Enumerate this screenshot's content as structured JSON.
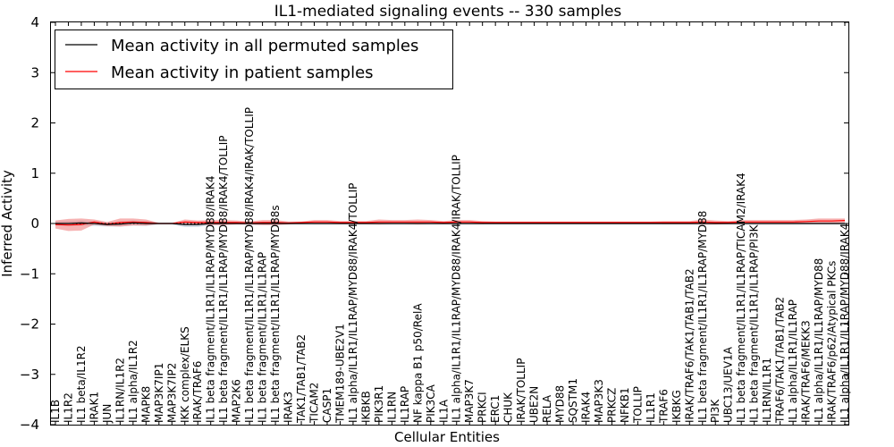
{
  "chart_data": {
    "type": "line",
    "title": "IL1-mediated signaling events -- 330 samples",
    "xlabel": "Cellular Entities",
    "ylabel": "Inferred Activity",
    "ylim": [
      -4,
      4
    ],
    "yticks": [
      -4,
      -3,
      -2,
      -1,
      0,
      1,
      2,
      3,
      4
    ],
    "ytick_labels": [
      "−4",
      "−3",
      "−2",
      "−1",
      "0",
      "1",
      "2",
      "3",
      "4"
    ],
    "legend_position": "top-left",
    "colors": {
      "permuted": "#000000",
      "patient": "#ff0000",
      "patient_band": "#f08080",
      "permuted_band": "#a8b8c8"
    },
    "categories": [
      "IL1B",
      "IL1R2",
      "IL1 beta/IL1R2",
      "IRAK1",
      "JUN",
      "IL1RN/IL1R2",
      "IL1 alpha/IL1R2",
      "MAPK8",
      "MAP3K7IP1",
      "MAP3K7IP2",
      "IKK complex/ELKS",
      "IRAK/TRAF6",
      "IL1 beta fragment/IL1R1/IL1RAP/MYD88/IRAK4",
      "IL1 beta fragment/IL1R1/IL1RAP/MYD88/IRAK4/TOLLIP",
      "MAP2K6",
      "IL1 beta fragment/IL1R1/IL1RAP/MYD88/IRAK4/IRAK/TOLLIP",
      "IL1 beta fragment/IL1R1/IL1RAP",
      "IL1 beta fragment/IL1R1/IL1RAP/MYD88s",
      "IRAK3",
      "TAK1/TAB1/TAB2",
      "TICAM2",
      "CASP1",
      "TMEM189-UBE2V1",
      "IL1 alpha/IL1R1/IL1RAP/MYD88/IRAK4/TOLLIP",
      "IKBKB",
      "PIK3R1",
      "IL1RN",
      "IL1RAP",
      "NF kappa B1 p50/RelA",
      "PIK3CA",
      "IL1A",
      "IL1 alpha/IL1R1/IL1RAP/MYD88/IRAK4/IRAK/TOLLIP",
      "MAP3K7",
      "PRKCI",
      "ERC1",
      "CHUK",
      "IRAK/TOLLIP",
      "UBE2N",
      "RELA",
      "MYD88",
      "SQSTM1",
      "IRAK4",
      "MAP3K3",
      "PRKCZ",
      "NFKB1",
      "TOLLIP",
      "IL1R1",
      "TRAF6",
      "IKBKG",
      "IRAK/TRAF6/TAK1/TAB1/TAB2",
      "IL1 beta fragment/IL1R1/IL1RAP/MYD88",
      "PI3K",
      "UBC13/UEV1A",
      "IL1 beta fragment/IL1R1/IL1RAP/TICAM2/IRAK4",
      "IL1 beta fragment/IL1R1/IL1RAP/PI3K",
      "IL1RN/IL1R1",
      "TRAF6/TAK1/TAB1/TAB2",
      "IL1 alpha/IL1R1/IL1RAP",
      "IRAK/TRAF6/MEKK3",
      "IL1 alpha/IL1R1/IL1RAP/MYD88",
      "IRAK/TRAF6/p62/Atypical PKCs",
      "IL1 alpha/IL1R1/IL1RAP/MYD88/IRAK4"
    ],
    "series": [
      {
        "name": "Mean activity in all permuted samples",
        "values": [
          0.0,
          0.0,
          0.01,
          0.0,
          -0.02,
          -0.01,
          0.01,
          0.0,
          0.0,
          0.0,
          -0.02,
          -0.02,
          0.0,
          0.0,
          0.0,
          0.0,
          0.0,
          0.0,
          0.0,
          0.0,
          0.0,
          0.0,
          0.0,
          0.0,
          0.0,
          0.0,
          0.0,
          0.0,
          0.0,
          0.0,
          0.0,
          0.0,
          0.0,
          0.0,
          0.0,
          0.0,
          0.0,
          0.0,
          0.0,
          0.0,
          0.0,
          0.0,
          0.0,
          0.0,
          0.0,
          0.0,
          0.0,
          0.0,
          0.0,
          0.0,
          0.0,
          0.0,
          0.0,
          0.0,
          0.0,
          0.0,
          0.0,
          0.0,
          0.0,
          0.0,
          0.0,
          0.0
        ],
        "std": [
          0.04,
          0.05,
          0.05,
          0.05,
          0.04,
          0.05,
          0.05,
          0.05,
          0.02,
          0.02,
          0.05,
          0.05,
          0.03,
          0.03,
          0.02,
          0.03,
          0.03,
          0.03,
          0.02,
          0.02,
          0.02,
          0.02,
          0.02,
          0.02,
          0.02,
          0.02,
          0.02,
          0.02,
          0.02,
          0.02,
          0.02,
          0.02,
          0.02,
          0.02,
          0.02,
          0.02,
          0.02,
          0.02,
          0.02,
          0.02,
          0.02,
          0.02,
          0.02,
          0.02,
          0.02,
          0.02,
          0.02,
          0.02,
          0.02,
          0.02,
          0.02,
          0.02,
          0.02,
          0.02,
          0.02,
          0.02,
          0.02,
          0.02,
          0.02,
          0.02,
          0.02,
          0.02
        ]
      },
      {
        "name": "Mean activity in patient samples",
        "values": [
          -0.02,
          -0.03,
          -0.02,
          0.03,
          -0.01,
          0.02,
          0.03,
          0.02,
          0.0,
          0.0,
          0.03,
          0.02,
          0.02,
          0.02,
          0.02,
          0.01,
          0.02,
          0.02,
          0.01,
          0.02,
          0.03,
          0.03,
          0.02,
          0.02,
          0.02,
          0.03,
          0.03,
          0.03,
          0.03,
          0.03,
          0.02,
          0.03,
          0.03,
          0.02,
          0.02,
          0.02,
          0.02,
          0.02,
          0.02,
          0.02,
          0.02,
          0.02,
          0.02,
          0.02,
          0.02,
          0.02,
          0.02,
          0.02,
          0.02,
          0.02,
          0.03,
          0.02,
          0.02,
          0.03,
          0.03,
          0.03,
          0.03,
          0.03,
          0.04,
          0.05,
          0.05,
          0.06
        ],
        "std": [
          0.08,
          0.12,
          0.12,
          0.05,
          0.04,
          0.08,
          0.07,
          0.06,
          0.01,
          0.01,
          0.05,
          0.04,
          0.05,
          0.05,
          0.04,
          0.03,
          0.05,
          0.05,
          0.03,
          0.02,
          0.04,
          0.04,
          0.03,
          0.03,
          0.03,
          0.05,
          0.04,
          0.04,
          0.05,
          0.04,
          0.03,
          0.04,
          0.04,
          0.03,
          0.02,
          0.02,
          0.02,
          0.02,
          0.02,
          0.02,
          0.02,
          0.02,
          0.02,
          0.02,
          0.02,
          0.02,
          0.02,
          0.03,
          0.03,
          0.03,
          0.05,
          0.04,
          0.03,
          0.04,
          0.04,
          0.04,
          0.04,
          0.04,
          0.04,
          0.05,
          0.05,
          0.04
        ]
      }
    ]
  }
}
